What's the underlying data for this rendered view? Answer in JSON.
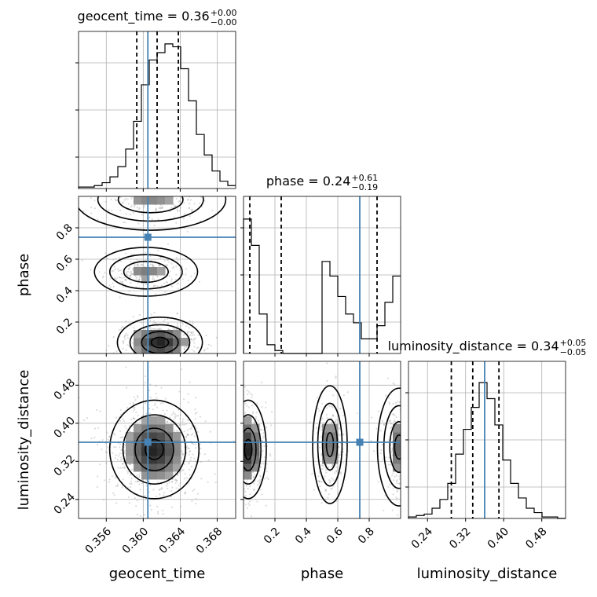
{
  "chart_data": {
    "type": "corner",
    "colors": {
      "truth": "#4682b4",
      "line": "#000000",
      "grid": "#b0b0b0",
      "scatter": "#9a9a9a"
    },
    "parameters": [
      {
        "name": "geocent_time",
        "label": "geocent_time",
        "title_prefix": "geocent_time = 0.36",
        "title_plus": "+0.00",
        "title_minus": "−0.00",
        "range": [
          0.353,
          0.37
        ],
        "ticks": [
          0.356,
          0.36,
          0.364,
          0.368
        ],
        "tick_labels": [
          "0.356",
          "0.360",
          "0.364",
          "0.368"
        ],
        "truth": 0.3605,
        "quantiles": [
          0.3593,
          0.3615,
          0.3638
        ],
        "hist_edges": [
          0.353,
          0.37
        ],
        "hist_heights": [
          0.01,
          0.01,
          0.02,
          0.04,
          0.08,
          0.15,
          0.27,
          0.46,
          0.71,
          0.88,
          0.93,
          0.99,
          0.97,
          0.82,
          0.6,
          0.37,
          0.23,
          0.12,
          0.05,
          0.02
        ]
      },
      {
        "name": "phase",
        "label": "phase",
        "title_prefix": "phase = 0.24",
        "title_plus": "+0.61",
        "title_minus": "−0.19",
        "range": [
          0.0,
          1.0
        ],
        "ticks": [
          0.2,
          0.4,
          0.6,
          0.8
        ],
        "tick_labels": [
          "0.2",
          "0.4",
          "0.6",
          "0.8"
        ],
        "truth": 0.74,
        "quantiles": [
          0.04,
          0.24,
          0.85
        ],
        "hist_heights": [
          0.92,
          0.74,
          0.27,
          0.06,
          0.02,
          0.0,
          0.0,
          0.0,
          0.0,
          0.0,
          0.63,
          0.53,
          0.39,
          0.27,
          0.21,
          0.1,
          0.1,
          0.19,
          0.35,
          0.53
        ]
      },
      {
        "name": "luminosity_distance",
        "label": "luminosity_distance",
        "title_prefix": "luminosity_distance = 0.34",
        "title_plus": "+0.05",
        "title_minus": "−0.05",
        "range": [
          0.2,
          0.53
        ],
        "ticks": [
          0.24,
          0.32,
          0.4,
          0.48
        ],
        "tick_labels": [
          "0.24",
          "0.32",
          "0.40",
          "0.48"
        ],
        "truth": 0.36,
        "quantiles": [
          0.29,
          0.335,
          0.39
        ],
        "hist_heights": [
          0.01,
          0.02,
          0.03,
          0.07,
          0.13,
          0.24,
          0.44,
          0.61,
          0.76,
          0.93,
          0.82,
          0.64,
          0.4,
          0.24,
          0.14,
          0.07,
          0.04,
          0.01,
          0.01,
          0.0
        ]
      }
    ],
    "truth_point": {
      "geocent_time": 0.3605,
      "phase": 0.74,
      "luminosity_distance": 0.36
    },
    "density_modes": {
      "phase_vs_geocent_time": [
        {
          "x": 0.3618,
          "y": 0.07,
          "sx": 0.002,
          "sy": 0.07,
          "w": 1.0
        },
        {
          "x": 0.3603,
          "y": 0.52,
          "sx": 0.0018,
          "sy": 0.05,
          "w": 0.55
        },
        {
          "x": 0.3608,
          "y": 0.98,
          "sx": 0.0025,
          "sy": 0.06,
          "w": 0.5
        }
      ],
      "luminosity_distance_vs_geocent_time": [
        {
          "x": 0.3612,
          "y": 0.345,
          "sx": 0.0021,
          "sy": 0.045,
          "w": 1.0
        }
      ],
      "luminosity_distance_vs_phase": [
        {
          "x": 0.03,
          "y": 0.345,
          "sx": 0.05,
          "sy": 0.045,
          "w": 1.0
        },
        {
          "x": 0.55,
          "y": 0.355,
          "sx": 0.04,
          "sy": 0.045,
          "w": 0.7
        },
        {
          "x": 0.99,
          "y": 0.35,
          "sx": 0.05,
          "sy": 0.045,
          "w": 0.7
        }
      ]
    },
    "grid": true,
    "xlabel_rotation_deg": 45
  }
}
